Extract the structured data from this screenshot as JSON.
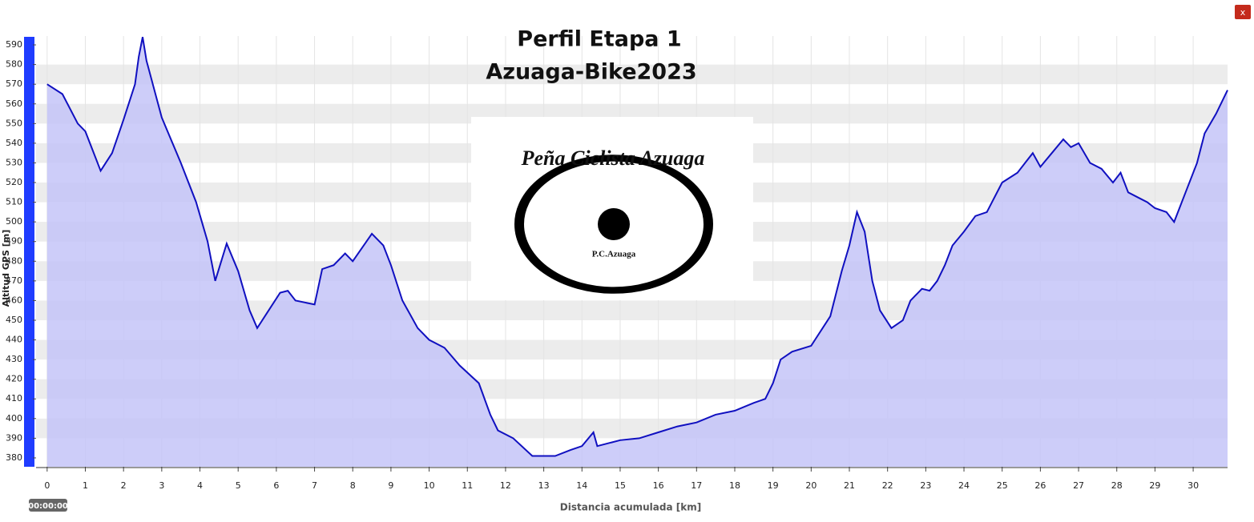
{
  "chart_data": {
    "type": "line",
    "title": "Perfil Etapa 1",
    "subtitle": "Azuaga-Bike2023",
    "y_label": "Altitud GPS [m]",
    "x_label": "Distancia acumulada [km]",
    "time_label": "00:00:00",
    "logo": {
      "top_text": "Peña Ciclista Azuaga",
      "bottom_text": "P.C.Azuaga"
    },
    "color": "#1010c0",
    "fill_color": "#c4c4f8",
    "xlim": [
      -0.29,
      30.9
    ],
    "ylim": [
      375.5,
      594.5
    ],
    "xticks": [
      0,
      1,
      2,
      3,
      4,
      5,
      6,
      7,
      8,
      9,
      10,
      11,
      12,
      13,
      14,
      15,
      16,
      17,
      18,
      19,
      20,
      21,
      22,
      23,
      24,
      25,
      26,
      27,
      28,
      29,
      30
    ],
    "yticks": [
      380,
      390,
      400,
      410,
      420,
      430,
      440,
      450,
      460,
      470,
      480,
      490,
      500,
      510,
      520,
      530,
      540,
      550,
      560,
      570,
      580,
      590
    ],
    "x": [
      0,
      0.4,
      0.8,
      1.0,
      1.4,
      1.7,
      2.0,
      2.3,
      2.4,
      2.5,
      2.6,
      3.0,
      3.5,
      3.9,
      4.2,
      4.4,
      4.7,
      5.0,
      5.3,
      5.5,
      5.8,
      6.1,
      6.3,
      6.5,
      7.0,
      7.2,
      7.5,
      7.8,
      8.0,
      8.5,
      8.8,
      9.0,
      9.3,
      9.7,
      10.0,
      10.4,
      10.8,
      11.3,
      11.6,
      11.8,
      12.2,
      12.7,
      13.3,
      13.7,
      14.0,
      14.3,
      14.4,
      15.0,
      15.5,
      16.0,
      16.5,
      17.0,
      17.5,
      18.0,
      18.5,
      18.8,
      19.0,
      19.2,
      19.5,
      20.0,
      20.5,
      20.8,
      21.0,
      21.2,
      21.4,
      21.6,
      21.8,
      22.1,
      22.4,
      22.6,
      22.9,
      23.1,
      23.3,
      23.5,
      23.7,
      24.0,
      24.3,
      24.6,
      25.0,
      25.4,
      25.6,
      25.8,
      26.0,
      26.3,
      26.6,
      26.8,
      27.0,
      27.3,
      27.6,
      27.9,
      28.1,
      28.3,
      28.6,
      28.8,
      29.0,
      29.3,
      29.5,
      29.8,
      30.1,
      30.3,
      30.6,
      30.9
    ],
    "values": [
      570,
      565,
      550,
      546,
      526,
      535,
      552,
      570,
      584,
      594,
      582,
      553,
      530,
      510,
      490,
      470,
      489,
      475,
      455,
      446,
      455,
      464,
      465,
      460,
      458,
      476,
      478,
      484,
      480,
      494,
      488,
      478,
      460,
      446,
      440,
      436,
      427,
      418,
      402,
      394,
      390,
      381,
      381,
      384,
      386,
      393,
      386,
      389,
      390,
      393,
      396,
      398,
      402,
      404,
      408,
      410,
      418,
      430,
      434,
      437,
      452,
      475,
      488,
      505,
      495,
      470,
      455,
      446,
      450,
      460,
      466,
      465,
      470,
      478,
      488,
      495,
      503,
      505,
      520,
      525,
      530,
      535,
      528,
      535,
      542,
      538,
      540,
      530,
      527,
      520,
      525,
      515,
      512,
      510,
      507,
      505,
      500,
      515,
      530,
      545,
      555,
      567
    ]
  }
}
